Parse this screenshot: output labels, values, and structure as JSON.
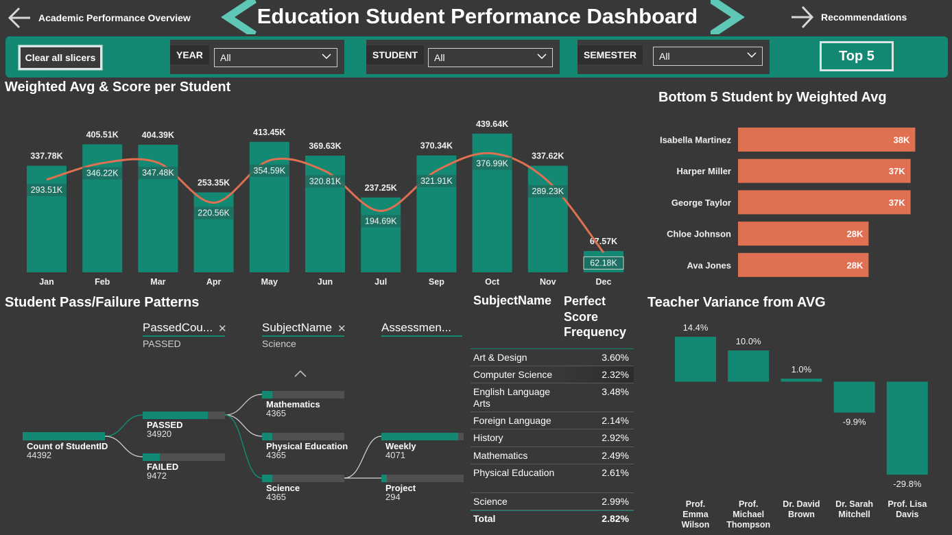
{
  "header": {
    "back_label": "Academic Performance Overview",
    "title": "Education Student Performance Dashboard",
    "next_label": "Recommendations"
  },
  "slicers": {
    "clear_label": "Clear all slicers",
    "year_label": "YEAR",
    "year_value": "All",
    "student_label": "STUDENT",
    "student_value": "All",
    "semester_label": "SEMESTER",
    "semester_value": "All",
    "top5_label": "Top 5"
  },
  "colors": {
    "teal": "#138873",
    "salmon": "#df7051",
    "background": "#383838"
  },
  "chart_data": [
    {
      "type": "bar",
      "title": "Weighted Avg & Score per Student",
      "categories": [
        "Jan",
        "Feb",
        "Mar",
        "Apr",
        "May",
        "Jun",
        "Jul",
        "Sep",
        "Oct",
        "Nov",
        "Dec"
      ],
      "series": [
        {
          "type": "bar",
          "values": [
            337.78,
            405.51,
            404.39,
            253.35,
            413.45,
            369.63,
            237.25,
            370.34,
            439.64,
            337.62,
            67.57
          ],
          "labels": [
            "337.78K",
            "405.51K",
            "404.39K",
            "253.35K",
            "413.45K",
            "369.63K",
            "237.25K",
            "370.34K",
            "439.64K",
            "337.62K",
            "67.57K"
          ]
        },
        {
          "type": "line",
          "values": [
            293.51,
            346.22,
            347.48,
            220.56,
            354.59,
            320.81,
            194.69,
            321.91,
            376.99,
            289.23,
            62.18
          ],
          "labels": [
            "293.51K",
            "346.22K",
            "347.48K",
            "220.56K",
            "354.59K",
            "320.81K",
            "194.69K",
            "321.91K",
            "376.99K",
            "289.23K",
            "62.18K"
          ]
        }
      ],
      "unit": "K"
    },
    {
      "type": "bar",
      "orientation": "horizontal",
      "title": "Bottom 5 Student by Weighted Avg",
      "categories": [
        "Isabella Martinez",
        "Harper Miller",
        "George Taylor",
        "Chloe Johnson",
        "Ava Jones"
      ],
      "values": [
        38,
        37,
        37,
        28,
        28
      ],
      "labels": [
        "38K",
        "37K",
        "37K",
        "28K",
        "28K"
      ]
    },
    {
      "type": "bar",
      "title": "Teacher Variance from AVG",
      "categories": [
        "Prof. Emma Wilson",
        "Prof. Michael Thompson",
        "Dr. David Brown",
        "Dr. Sarah Mitchell",
        "Prof. Lisa Davis"
      ],
      "category_lines": [
        [
          "Prof.",
          "Emma",
          "Wilson"
        ],
        [
          "Prof.",
          "Michael",
          "Thompson"
        ],
        [
          "Dr. David",
          "Brown"
        ],
        [
          "Dr. Sarah",
          "Mitchell"
        ],
        [
          "Prof. Lisa",
          "Davis"
        ]
      ],
      "values": [
        14.4,
        10.0,
        1.0,
        -9.9,
        -29.8
      ],
      "labels": [
        "14.4%",
        "10.0%",
        "1.0%",
        "-9.9%",
        "-29.8%"
      ]
    },
    {
      "type": "table",
      "columns": [
        "SubjectName",
        "Perfect Score Frequency"
      ],
      "rows": [
        [
          "Art & Design",
          "3.60%"
        ],
        [
          "Computer Science",
          "2.32%"
        ],
        [
          "English Language Arts",
          "3.48%"
        ],
        [
          "Foreign Language",
          "2.14%"
        ],
        [
          "History",
          "2.92%"
        ],
        [
          "Mathematics",
          "2.49%"
        ],
        [
          "Physical Education",
          "2.61%"
        ],
        [
          "Science",
          "2.99%"
        ]
      ],
      "total": [
        "Total",
        "2.82%"
      ]
    }
  ],
  "decomp": {
    "title": "Student Pass/Failure Patterns",
    "levels": [
      {
        "head": "PassedCou...",
        "sub": "PASSED"
      },
      {
        "head": "SubjectName",
        "sub": "Science"
      },
      {
        "head": "Assessmen...",
        "sub": ""
      }
    ],
    "root": {
      "name": "Count of StudentID",
      "value": "44392"
    },
    "level1": [
      {
        "name": "PASSED",
        "value": "34920",
        "fraction": 0.79
      },
      {
        "name": "FAILED",
        "value": "9472",
        "fraction": 0.21
      }
    ],
    "level2": [
      {
        "name": "Mathematics",
        "value": "4365",
        "fraction": 0.125
      },
      {
        "name": "Physical Education",
        "value": "4365",
        "fraction": 0.125
      },
      {
        "name": "Science",
        "value": "4365",
        "fraction": 0.125
      }
    ],
    "level3": [
      {
        "name": "Weekly",
        "value": "4071",
        "fraction": 0.93
      },
      {
        "name": "Project",
        "value": "294",
        "fraction": 0.07
      }
    ]
  }
}
